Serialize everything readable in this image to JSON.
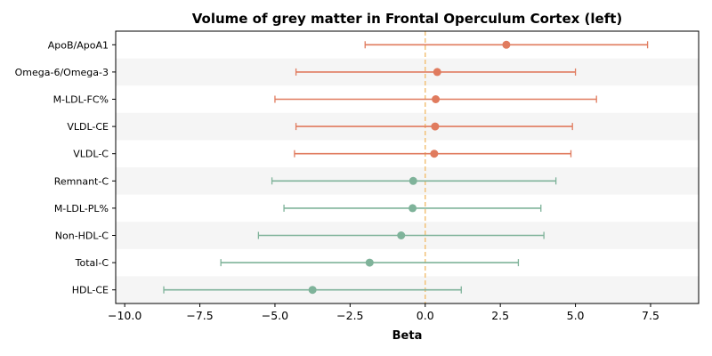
{
  "chart_data": {
    "type": "forest",
    "title": "Volume of grey matter in Frontal Operculum Cortex (left)",
    "xlabel": "Beta",
    "ylabel": "",
    "xlim": [
      -10.3,
      9.1
    ],
    "xticks": [
      -10.0,
      -7.5,
      -5.0,
      -2.5,
      0.0,
      2.5,
      5.0,
      7.5
    ],
    "xtick_labels": [
      "−10.0",
      "−7.5",
      "−5.0",
      "−2.5",
      "0.0",
      "2.5",
      "5.0",
      "7.5"
    ],
    "reference_line": 0,
    "grid": false,
    "rows": [
      {
        "label": "ApoB/ApoA1",
        "beta": 2.7,
        "lower": -2.0,
        "upper": 7.4,
        "color": "#e07b5e"
      },
      {
        "label": "Omega-6/Omega-3",
        "beta": 0.4,
        "lower": -4.3,
        "upper": 5.0,
        "color": "#e07b5e"
      },
      {
        "label": "M-LDL-FC%",
        "beta": 0.35,
        "lower": -5.0,
        "upper": 5.7,
        "color": "#e07b5e"
      },
      {
        "label": "VLDL-CE",
        "beta": 0.33,
        "lower": -4.3,
        "upper": 4.9,
        "color": "#e07b5e"
      },
      {
        "label": "VLDL-C",
        "beta": 0.3,
        "lower": -4.35,
        "upper": 4.85,
        "color": "#e07b5e"
      },
      {
        "label": "Remnant-C",
        "beta": -0.4,
        "lower": -5.1,
        "upper": 4.35,
        "color": "#7fb39a"
      },
      {
        "label": "M-LDL-PL%",
        "beta": -0.42,
        "lower": -4.7,
        "upper": 3.85,
        "color": "#7fb39a"
      },
      {
        "label": "Non-HDL-C",
        "beta": -0.8,
        "lower": -5.55,
        "upper": 3.95,
        "color": "#7fb39a"
      },
      {
        "label": "Total-C",
        "beta": -1.85,
        "lower": -6.8,
        "upper": 3.1,
        "color": "#7fb39a"
      },
      {
        "label": "HDL-CE",
        "beta": -3.75,
        "lower": -8.7,
        "upper": 1.2,
        "color": "#7fb39a"
      }
    ],
    "colors": {
      "positive": "#e07b5e",
      "negative": "#7fb39a",
      "reference_line": "#f2c27a",
      "band": "#f5f5f5"
    }
  }
}
